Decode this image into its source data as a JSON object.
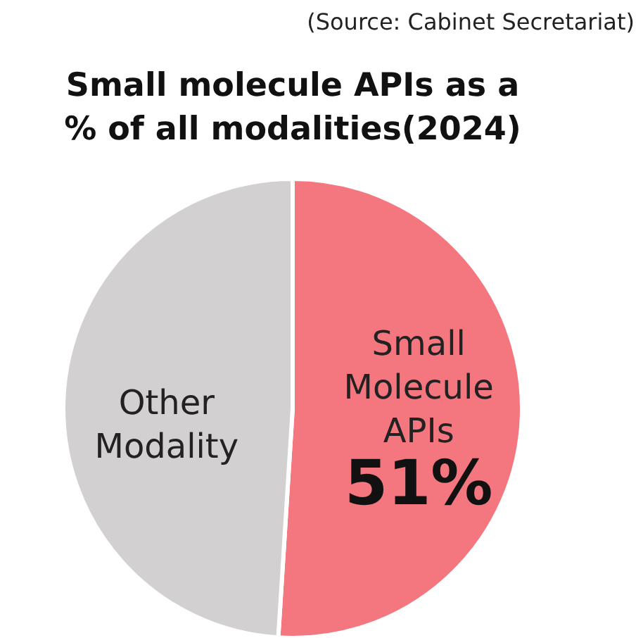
{
  "chart_data": {
    "type": "pie",
    "title": "Small molecule APIs as a % of all modalities(2024)",
    "categories": [
      "Small Molecule APIs",
      "Other Modality"
    ],
    "values": [
      51,
      49
    ],
    "colors": [
      "#f4777f",
      "#d3d0d1"
    ],
    "value_labels": [
      "51%",
      null
    ],
    "annotations": [
      "(Source: Cabinet Secretariat)"
    ]
  }
}
